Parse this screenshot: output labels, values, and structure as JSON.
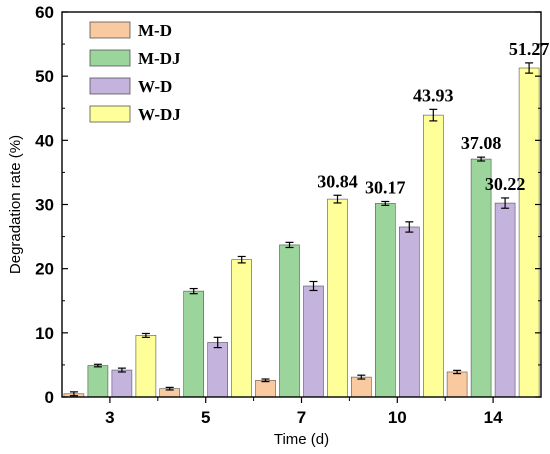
{
  "chart_data": {
    "type": "bar",
    "title": "",
    "xlabel": "Time (d)",
    "ylabel": "Degradation rate (%)",
    "ylim": [
      0,
      60
    ],
    "yticks": [
      0,
      10,
      20,
      30,
      40,
      50,
      60
    ],
    "categories": [
      "3",
      "5",
      "7",
      "10",
      "14"
    ],
    "legend_position": "top-left",
    "grid": false,
    "series": [
      {
        "name": "M-D",
        "color": "#f9c9a0",
        "values": [
          0.5,
          1.3,
          2.6,
          3.1,
          3.9
        ],
        "errors": [
          0.3,
          0.2,
          0.2,
          0.3,
          0.25
        ]
      },
      {
        "name": "M-DJ",
        "color": "#9bd59b",
        "values": [
          4.9,
          16.5,
          23.7,
          30.17,
          37.08
        ],
        "errors": [
          0.2,
          0.4,
          0.4,
          0.3,
          0.3
        ]
      },
      {
        "name": "W-D",
        "color": "#c3b3dd",
        "values": [
          4.2,
          8.5,
          17.3,
          26.5,
          30.22
        ],
        "errors": [
          0.3,
          0.8,
          0.7,
          0.8,
          0.8
        ]
      },
      {
        "name": "W-DJ",
        "color": "#ffff99",
        "values": [
          9.6,
          21.4,
          30.84,
          43.93,
          51.27
        ],
        "errors": [
          0.3,
          0.5,
          0.6,
          0.9,
          0.8
        ]
      }
    ],
    "annotations": [
      {
        "text": "30.84",
        "category": "7",
        "series": "W-DJ"
      },
      {
        "text": "30.17",
        "category": "10",
        "series": "M-DJ"
      },
      {
        "text": "43.93",
        "category": "10",
        "series": "W-DJ"
      },
      {
        "text": "37.08",
        "category": "14",
        "series": "M-DJ"
      },
      {
        "text": "30.22",
        "category": "14",
        "series": "W-D"
      },
      {
        "text": "51.27",
        "category": "14",
        "series": "W-DJ"
      }
    ]
  }
}
